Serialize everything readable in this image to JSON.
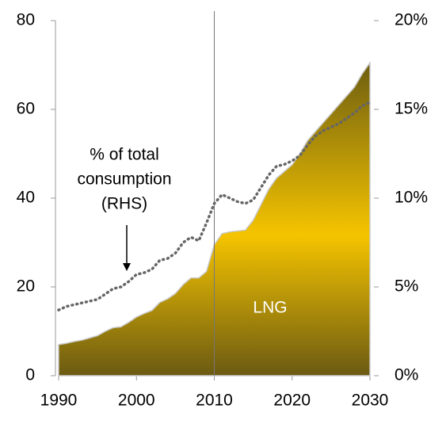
{
  "chart_data": {
    "type": "area_line",
    "x": [
      1990,
      1991,
      1992,
      1993,
      1994,
      1995,
      1996,
      1997,
      1998,
      1999,
      2000,
      2001,
      2002,
      2003,
      2004,
      2005,
      2006,
      2007,
      2008,
      2009,
      2010,
      2011,
      2012,
      2013,
      2014,
      2015,
      2016,
      2017,
      2018,
      2019,
      2020,
      2021,
      2022,
      2023,
      2024,
      2025,
      2026,
      2027,
      2028,
      2029,
      2030
    ],
    "series": [
      {
        "name": "LNG",
        "color": "#f5c400",
        "values": [
          7,
          7.3,
          7.7,
          8,
          8.5,
          9,
          10,
          10.8,
          11,
          12,
          13.2,
          14,
          14.7,
          16.5,
          17.3,
          18.5,
          20.5,
          22,
          22,
          23.5,
          29.5,
          32,
          32.4,
          32.6,
          32.8,
          35,
          38.5,
          42,
          44.5,
          46,
          47.5,
          50,
          53,
          55,
          57,
          59,
          61,
          63,
          65,
          68,
          70.5
        ]
      },
      {
        "axis": "y2",
        "color": "#666666",
        "values": [
          3.7,
          3.9,
          4.0,
          4.1,
          4.2,
          4.3,
          4.6,
          4.9,
          5.0,
          5.3,
          5.7,
          5.8,
          6.0,
          6.5,
          6.6,
          6.9,
          7.5,
          7.8,
          7.6,
          8.6,
          9.7,
          10.2,
          10.0,
          9.8,
          9.7,
          9.9,
          10.6,
          11.3,
          11.8,
          11.9,
          12.1,
          12.4,
          13.0,
          13.5,
          13.8,
          14.0,
          14.2,
          14.5,
          14.8,
          15.2,
          15.4
        ]
      }
    ],
    "xlim": [
      1990,
      2030
    ],
    "xticks": [
      1990,
      2000,
      2010,
      2020,
      2030
    ],
    "ylim": [
      0,
      80
    ],
    "yticks": [
      0,
      20,
      40,
      60,
      80
    ],
    "y2lim": [
      0,
      20
    ],
    "y2ticks": [
      {
        "value": 0,
        "label": "0%"
      },
      {
        "value": 5,
        "label": "5%"
      },
      {
        "value": 10,
        "label": "10%"
      },
      {
        "value": 15,
        "label": "15%"
      },
      {
        "value": 20,
        "label": "20%"
      }
    ],
    "divider_x": 2010,
    "annotation": [
      "% of total",
      "consumption",
      "(RHS)"
    ]
  }
}
